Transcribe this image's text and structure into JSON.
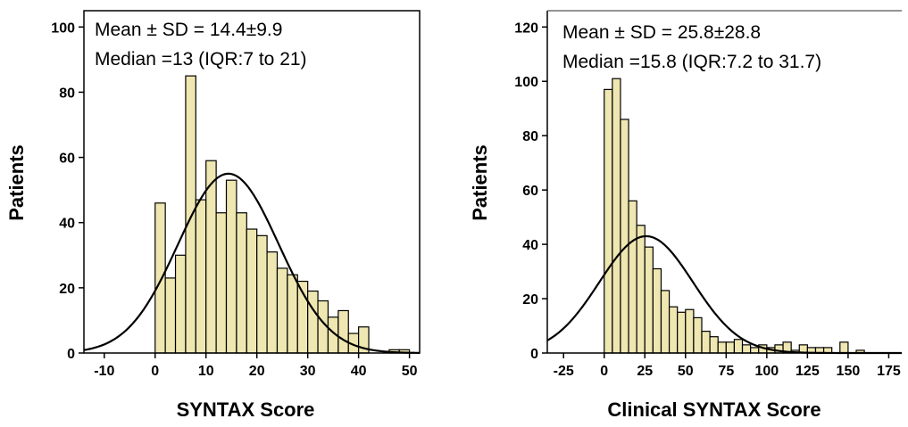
{
  "chart_data": [
    {
      "type": "bar",
      "subtype": "histogram",
      "xlabel": "SYNTAX Score",
      "ylabel": "Patients",
      "stats_lines": [
        "Mean ± SD = 14.4±9.9",
        "Median =13 (IQR:7 to 21)"
      ],
      "xlim": [
        -14,
        52
      ],
      "ylim": [
        0,
        105
      ],
      "xticks": [
        -10,
        0,
        10,
        20,
        30,
        40,
        50
      ],
      "yticks": [
        0,
        20,
        40,
        60,
        80,
        100
      ],
      "xtick_labels": [
        "-10",
        "0",
        "10",
        "20",
        "30",
        "40",
        "50"
      ],
      "ytick_labels": [
        "0",
        "20",
        "40",
        "60",
        "80",
        "100"
      ],
      "bin_width": 2,
      "bins": [
        {
          "x0": 0,
          "count": 46
        },
        {
          "x0": 2,
          "count": 23
        },
        {
          "x0": 4,
          "count": 30
        },
        {
          "x0": 6,
          "count": 85
        },
        {
          "x0": 8,
          "count": 47
        },
        {
          "x0": 10,
          "count": 59
        },
        {
          "x0": 12,
          "count": 43
        },
        {
          "x0": 14,
          "count": 53
        },
        {
          "x0": 16,
          "count": 43
        },
        {
          "x0": 18,
          "count": 38
        },
        {
          "x0": 20,
          "count": 36
        },
        {
          "x0": 22,
          "count": 31
        },
        {
          "x0": 24,
          "count": 26
        },
        {
          "x0": 26,
          "count": 24
        },
        {
          "x0": 28,
          "count": 22
        },
        {
          "x0": 30,
          "count": 19
        },
        {
          "x0": 32,
          "count": 16
        },
        {
          "x0": 34,
          "count": 11
        },
        {
          "x0": 36,
          "count": 13
        },
        {
          "x0": 38,
          "count": 6
        },
        {
          "x0": 40,
          "count": 8
        },
        {
          "x0": 42,
          "count": 0
        },
        {
          "x0": 44,
          "count": 0
        },
        {
          "x0": 46,
          "count": 1
        },
        {
          "x0": 48,
          "count": 1
        }
      ],
      "normal_curve": {
        "mean": 14.4,
        "sd": 9.9,
        "peak": 55
      },
      "bar_color": "#efe7b1",
      "edge_color": "#000000",
      "grid": false
    },
    {
      "type": "bar",
      "subtype": "histogram",
      "xlabel": "Clinical SYNTAX Score",
      "ylabel": "Patients",
      "stats_lines": [
        "Mean ± SD = 25.8±28.8",
        "Median =15.8 (IQR:7.2 to 31.7)"
      ],
      "xlim": [
        -35,
        183
      ],
      "ylim": [
        0,
        126
      ],
      "xticks": [
        -25,
        0,
        25,
        50,
        75,
        100,
        125,
        150,
        175
      ],
      "yticks": [
        0,
        20,
        40,
        60,
        80,
        100,
        120
      ],
      "xtick_labels": [
        "-25",
        "0",
        "25",
        "50",
        "75",
        "100",
        "125",
        "150",
        "175"
      ],
      "ytick_labels": [
        "0",
        "20",
        "40",
        "60",
        "80",
        "100",
        "120"
      ],
      "bin_width": 5,
      "bins": [
        {
          "x0": 0,
          "count": 97
        },
        {
          "x0": 5,
          "count": 101
        },
        {
          "x0": 10,
          "count": 86
        },
        {
          "x0": 15,
          "count": 56
        },
        {
          "x0": 20,
          "count": 47
        },
        {
          "x0": 25,
          "count": 39
        },
        {
          "x0": 30,
          "count": 31
        },
        {
          "x0": 35,
          "count": 23
        },
        {
          "x0": 40,
          "count": 17
        },
        {
          "x0": 45,
          "count": 15
        },
        {
          "x0": 50,
          "count": 16
        },
        {
          "x0": 55,
          "count": 13
        },
        {
          "x0": 60,
          "count": 8
        },
        {
          "x0": 65,
          "count": 6
        },
        {
          "x0": 70,
          "count": 4
        },
        {
          "x0": 75,
          "count": 4
        },
        {
          "x0": 80,
          "count": 5
        },
        {
          "x0": 85,
          "count": 3
        },
        {
          "x0": 90,
          "count": 2
        },
        {
          "x0": 95,
          "count": 3
        },
        {
          "x0": 100,
          "count": 2
        },
        {
          "x0": 105,
          "count": 3
        },
        {
          "x0": 110,
          "count": 4
        },
        {
          "x0": 115,
          "count": 1
        },
        {
          "x0": 120,
          "count": 3
        },
        {
          "x0": 125,
          "count": 2
        },
        {
          "x0": 130,
          "count": 2
        },
        {
          "x0": 135,
          "count": 2
        },
        {
          "x0": 140,
          "count": 0
        },
        {
          "x0": 145,
          "count": 4
        },
        {
          "x0": 150,
          "count": 0
        },
        {
          "x0": 155,
          "count": 1
        },
        {
          "x0": 160,
          "count": 0
        }
      ],
      "normal_curve": {
        "mean": 25.8,
        "sd": 28.8,
        "peak": 43
      },
      "bar_color": "#efe7b1",
      "edge_color": "#000000",
      "grid": false
    }
  ]
}
